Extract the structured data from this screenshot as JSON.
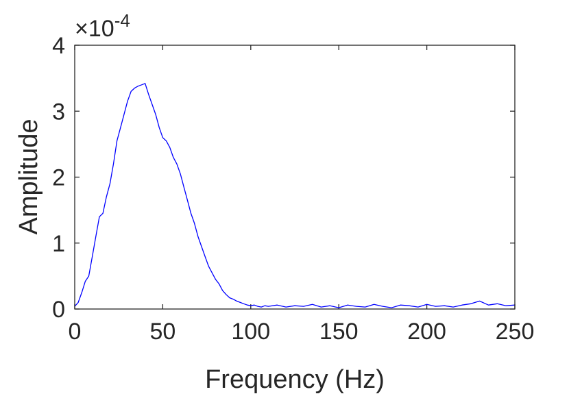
{
  "chart_data": {
    "type": "line",
    "title": "",
    "xlabel": "Frequency (Hz)",
    "ylabel": "Amplitude",
    "y_exponent_label": {
      "base": "×10",
      "exponent": "-4"
    },
    "xlim": [
      0,
      250
    ],
    "ylim": [
      0,
      4
    ],
    "y_scale_factor": 0.0001,
    "xticks": [
      0,
      50,
      100,
      150,
      200,
      250
    ],
    "xtick_labels": [
      "0",
      "50",
      "100",
      "150",
      "200",
      "250"
    ],
    "yticks": [
      0,
      1,
      2,
      3,
      4
    ],
    "ytick_labels": [
      "0",
      "1",
      "2",
      "3",
      "4"
    ],
    "grid": false,
    "box": true,
    "series": [
      {
        "color": "#0000ff",
        "x": [
          0,
          2,
          4,
          6,
          8,
          10,
          12,
          14,
          16,
          18,
          20,
          22,
          24,
          26,
          28,
          30,
          32,
          34,
          36,
          38,
          40,
          42,
          44,
          46,
          48,
          50,
          52,
          54,
          56,
          58,
          60,
          62,
          64,
          66,
          68,
          70,
          72,
          74,
          76,
          78,
          80,
          82,
          84,
          86,
          88,
          90,
          92,
          94,
          96,
          98,
          100,
          102,
          104,
          106,
          108,
          110,
          115,
          120,
          125,
          130,
          135,
          140,
          145,
          150,
          155,
          160,
          165,
          170,
          175,
          180,
          185,
          190,
          195,
          200,
          205,
          210,
          215,
          220,
          225,
          230,
          235,
          240,
          245,
          250
        ],
        "y": [
          0.04,
          0.1,
          0.25,
          0.42,
          0.5,
          0.8,
          1.1,
          1.4,
          1.45,
          1.7,
          1.9,
          2.2,
          2.55,
          2.75,
          2.95,
          3.15,
          3.3,
          3.35,
          3.38,
          3.4,
          3.42,
          3.25,
          3.1,
          2.95,
          2.75,
          2.6,
          2.55,
          2.45,
          2.3,
          2.2,
          2.05,
          1.85,
          1.65,
          1.45,
          1.3,
          1.1,
          0.95,
          0.8,
          0.65,
          0.55,
          0.45,
          0.38,
          0.28,
          0.22,
          0.17,
          0.15,
          0.12,
          0.1,
          0.08,
          0.06,
          0.05,
          0.06,
          0.04,
          0.03,
          0.05,
          0.04,
          0.06,
          0.03,
          0.05,
          0.04,
          0.07,
          0.03,
          0.05,
          0.02,
          0.06,
          0.04,
          0.03,
          0.07,
          0.04,
          0.02,
          0.06,
          0.05,
          0.03,
          0.07,
          0.04,
          0.05,
          0.03,
          0.06,
          0.08,
          0.12,
          0.06,
          0.08,
          0.05,
          0.06
        ]
      }
    ]
  }
}
